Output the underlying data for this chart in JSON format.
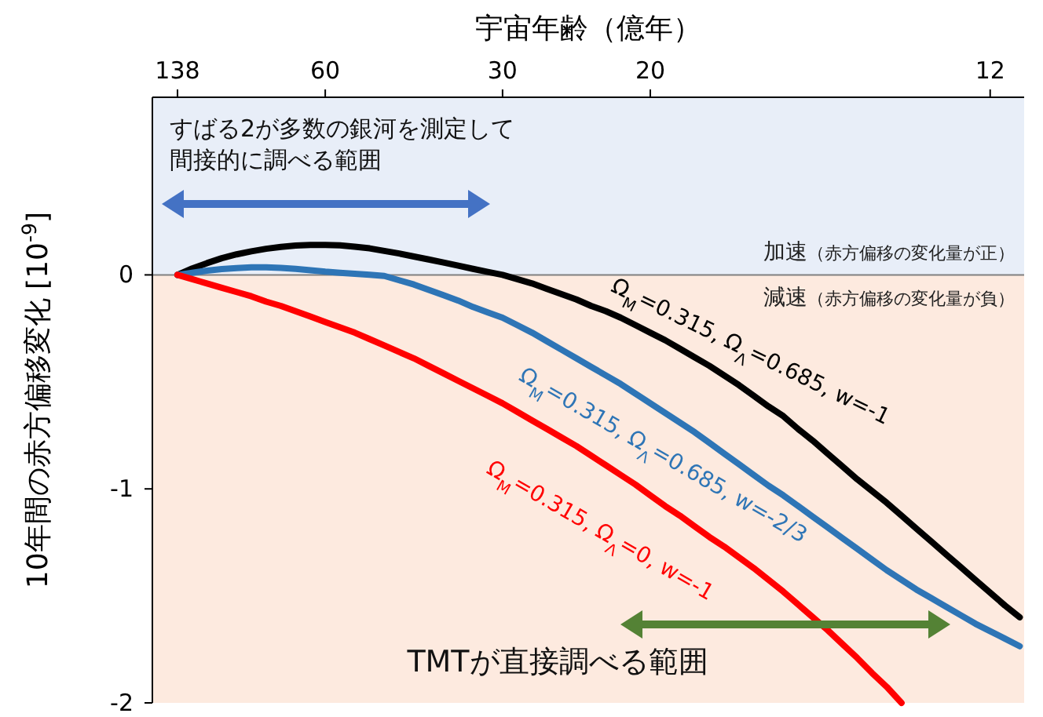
{
  "chart_data": {
    "type": "line",
    "xlabel": "宇宙年齢（億年）",
    "ylabel": "10年間の赤方偏移変化 [10$^{-9}$]",
    "categories": [
      "138",
      null,
      null,
      null,
      null,
      null,
      null,
      null,
      null,
      null,
      "60",
      null,
      null,
      null,
      null,
      null,
      null,
      null,
      null,
      null,
      null,
      null,
      "30",
      null,
      null,
      null,
      null,
      null,
      null,
      null,
      null,
      null,
      "20",
      null,
      null,
      null,
      null,
      null,
      null,
      null,
      null,
      null,
      null,
      null,
      null,
      null,
      null,
      null,
      null,
      null,
      null,
      null,
      null,
      null,
      null,
      "12",
      null,
      null
    ],
    "ylim": [
      -2,
      0.83
    ],
    "yticks": [
      0,
      -1,
      -2
    ],
    "bands": [
      {
        "axis": "y",
        "from": 0,
        "to": 0.83,
        "label": "加速（赤方偏移の変化量が正）",
        "color": "#e8eef8"
      },
      {
        "axis": "y",
        "from": -2,
        "to": 0,
        "label": "減速（赤方偏移の変化量が負）",
        "color": "#fdeadf"
      }
    ],
    "ref_lines": [
      {
        "axis": "y",
        "value": 0,
        "color": "#808080"
      }
    ],
    "series": [
      {
        "name": "Ω$_{M}$=0.315, Ω$_{Λ}$=0.685, w=-1",
        "color": "#000000",
        "values": [
          0,
          0.03,
          0.055,
          0.078,
          0.096,
          0.11,
          0.122,
          0.131,
          0.137,
          0.14,
          0.14,
          0.138,
          0.132,
          0.124,
          0.112,
          0.1,
          0.086,
          0.072,
          0.058,
          0.043,
          0.028,
          0.014,
          0,
          -0.02,
          -0.04,
          -0.065,
          -0.09,
          -0.115,
          -0.145,
          -0.17,
          -0.2,
          -0.235,
          -0.27,
          -0.305,
          -0.345,
          -0.385,
          -0.425,
          -0.47,
          -0.515,
          -0.565,
          -0.615,
          -0.66,
          -0.72,
          -0.775,
          -0.835,
          -0.895,
          -0.955,
          -1.01,
          -1.065,
          -1.125,
          -1.185,
          -1.245,
          -1.305,
          -1.365,
          -1.425,
          -1.485,
          -1.545,
          -1.6
        ]
      },
      {
        "name": "Ω$_{M}$=0.315, Ω$_{Λ}$=0.685, w=-2/3",
        "color": "#2e75b6",
        "values": [
          0,
          0.01,
          0.02,
          0.027,
          0.032,
          0.035,
          0.035,
          0.033,
          0.028,
          0.022,
          0.015,
          0.01,
          0.005,
          0.001,
          -0.005,
          -0.025,
          -0.045,
          -0.07,
          -0.095,
          -0.12,
          -0.15,
          -0.175,
          -0.2,
          -0.235,
          -0.27,
          -0.31,
          -0.35,
          -0.39,
          -0.43,
          -0.47,
          -0.51,
          -0.555,
          -0.6,
          -0.645,
          -0.69,
          -0.735,
          -0.785,
          -0.835,
          -0.885,
          -0.935,
          -0.985,
          -1.03,
          -1.08,
          -1.13,
          -1.18,
          -1.23,
          -1.28,
          -1.33,
          -1.38,
          -1.425,
          -1.47,
          -1.51,
          -1.55,
          -1.59,
          -1.63,
          -1.665,
          -1.7,
          -1.735
        ]
      },
      {
        "name": "Ω$_{M}$=0.315, Ω$_{Λ}$=0, w=-1",
        "color": "#ff0000",
        "values": [
          0,
          -0.02,
          -0.04,
          -0.06,
          -0.08,
          -0.1,
          -0.125,
          -0.145,
          -0.17,
          -0.195,
          -0.22,
          -0.245,
          -0.27,
          -0.3,
          -0.33,
          -0.36,
          -0.39,
          -0.425,
          -0.46,
          -0.495,
          -0.53,
          -0.565,
          -0.6,
          -0.64,
          -0.68,
          -0.72,
          -0.76,
          -0.8,
          -0.845,
          -0.89,
          -0.935,
          -0.98,
          -1.03,
          -1.08,
          -1.125,
          -1.175,
          -1.225,
          -1.27,
          -1.32,
          -1.37,
          -1.425,
          -1.48,
          -1.54,
          -1.6,
          -1.66,
          -1.725,
          -1.79,
          -1.86,
          -1.925,
          -2.0,
          null,
          null,
          null,
          null,
          null,
          null,
          null,
          null
        ]
      }
    ],
    "annotations": [
      "すばる2が多数の銀河を測定して",
      "間接的に調べる範囲",
      "TMTが直接調べる範囲"
    ],
    "legend": false,
    "grid": false
  }
}
